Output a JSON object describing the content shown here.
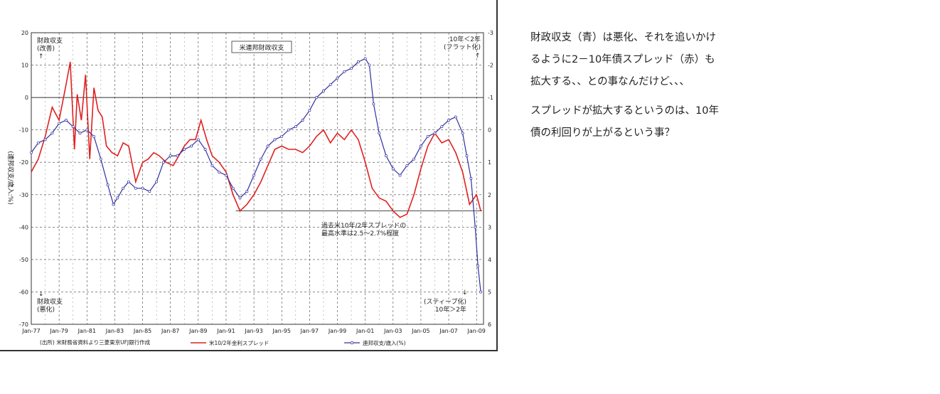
{
  "chart_data": {
    "type": "line",
    "title": "米連邦財政収支",
    "ylabel": "(連邦収支/歳入:%)",
    "ylim": [
      -70,
      20
    ],
    "y2lim": [
      -3,
      6
    ],
    "y2_inverted": true,
    "grid": true,
    "legend_position": "bottom",
    "x_ticks": [
      "Jan-77",
      "Jan-79",
      "Jan-81",
      "Jan-83",
      "Jan-85",
      "Jan-87",
      "Jan-89",
      "Jan-91",
      "Jan-93",
      "Jan-95",
      "Jan-97",
      "Jan-99",
      "Jan-01",
      "Jan-03",
      "Jan-05",
      "Jan-07",
      "Jan-09"
    ],
    "y_ticks": [
      20,
      10,
      0,
      -10,
      -20,
      -30,
      -40,
      -50,
      -60,
      -70
    ],
    "y2_ticks": [
      -3,
      -2,
      -1,
      0,
      1,
      2,
      3,
      4,
      5,
      6
    ],
    "source_note": "(出所) 米財務省資料より三菱東京UFJ銀行作成",
    "series": [
      {
        "name": "米10/2年金利スプレッド",
        "color": "#e02020",
        "axis": "right",
        "x": [
          1977,
          1977.5,
          1978,
          1978.5,
          1979,
          1979.5,
          1979.8,
          1980.1,
          1980.3,
          1980.6,
          1980.9,
          1981.2,
          1981.5,
          1981.8,
          1982.1,
          1982.4,
          1982.8,
          1983.2,
          1983.6,
          1984,
          1984.5,
          1985,
          1985.4,
          1985.8,
          1986.2,
          1986.7,
          1987.2,
          1987.6,
          1988,
          1988.4,
          1988.8,
          1989.2,
          1989.6,
          1990,
          1990.5,
          1991,
          1991.5,
          1992,
          1992.5,
          1993,
          1993.5,
          1994,
          1994.5,
          1995,
          1995.5,
          1996,
          1996.5,
          1997,
          1997.5,
          1998,
          1998.5,
          1999,
          1999.5,
          2000,
          2000.5,
          2001,
          2001.5,
          2002,
          2002.5,
          2003,
          2003.5,
          2004,
          2004.5,
          2005,
          2005.5,
          2006,
          2006.5,
          2007,
          2007.5,
          2008,
          2008.5,
          2009,
          2009.3
        ],
        "y": [
          1.3,
          0.9,
          0.2,
          -0.7,
          -0.3,
          -1.4,
          -2.1,
          0.6,
          -1.1,
          -0.3,
          -1.7,
          0.9,
          -1.3,
          -0.6,
          -0.4,
          0.5,
          0.7,
          0.8,
          0.4,
          0.5,
          1.6,
          1.0,
          0.9,
          0.7,
          0.8,
          1.0,
          1.1,
          0.8,
          0.5,
          0.3,
          0.3,
          -0.3,
          0.3,
          0.8,
          1.0,
          1.3,
          2.0,
          2.5,
          2.3,
          2.0,
          1.6,
          1.1,
          0.6,
          0.5,
          0.6,
          0.6,
          0.7,
          0.5,
          0.2,
          0.0,
          0.4,
          0.1,
          0.3,
          0.0,
          0.3,
          1.0,
          1.8,
          2.1,
          2.2,
          2.5,
          2.7,
          2.6,
          2.0,
          1.2,
          0.5,
          0.1,
          0.4,
          0.3,
          0.7,
          1.3,
          2.3,
          2.0,
          2.5
        ]
      },
      {
        "name": "連邦収支/歳入(%)",
        "color": "#3030a0",
        "axis": "left",
        "x": [
          1977,
          1977.5,
          1978,
          1978.5,
          1979,
          1979.5,
          1980,
          1980.5,
          1981,
          1981.5,
          1982,
          1982.5,
          1982.9,
          1983.2,
          1983.6,
          1984,
          1984.5,
          1985,
          1985.5,
          1986,
          1986.5,
          1987,
          1987.5,
          1988,
          1988.5,
          1989,
          1989.5,
          1990,
          1990.5,
          1991,
          1991.5,
          1992,
          1992.5,
          1993,
          1993.5,
          1994,
          1994.5,
          1995,
          1995.5,
          1996,
          1996.5,
          1997,
          1997.5,
          1998,
          1998.5,
          1999,
          1999.5,
          2000,
          2000.5,
          2001,
          2001.3,
          2001.6,
          2002,
          2002.5,
          2003,
          2003.5,
          2004,
          2004.5,
          2005,
          2005.5,
          2006,
          2006.5,
          2007,
          2007.5,
          2008,
          2008.3,
          2008.6,
          2008.9,
          2009.1,
          2009.3
        ],
        "y": [
          -17,
          -14,
          -13,
          -11,
          -8,
          -7,
          -9,
          -11,
          -10,
          -12,
          -19,
          -27,
          -33,
          -31,
          -28,
          -26,
          -28,
          -28,
          -29,
          -26,
          -20,
          -18,
          -18,
          -16,
          -15,
          -13,
          -16,
          -21,
          -23,
          -24,
          -28,
          -31,
          -29,
          -24,
          -19,
          -15,
          -13,
          -12,
          -10,
          -9,
          -7,
          -4,
          0,
          2,
          4,
          6,
          8,
          9,
          11,
          12,
          10,
          -2,
          -11,
          -18,
          -22,
          -24,
          -21,
          -19,
          -15,
          -12,
          -11,
          -9,
          -7,
          -6,
          -11,
          -18,
          -25,
          -40,
          -52,
          -60
        ]
      }
    ],
    "annotations": {
      "top_left_1": "財政収支",
      "top_left_2": "(改善)",
      "top_left_arrow": "↑",
      "bottom_left_arrow": "↓",
      "bottom_left_1": "財政収支",
      "bottom_left_2": "(悪化)",
      "top_right_1": "10年＜2年",
      "top_right_2": "(フラット化)",
      "top_right_arrow": "↑",
      "bottom_right_arrow": "↓",
      "bottom_right_1": "(スティープ化)",
      "bottom_right_2": "10年＞2年",
      "mid_note_1": "過去米10年/2年スプレッドの",
      "mid_note_2": "最高水準は2.5～2.7%程度"
    }
  },
  "blog": {
    "paragraph1": "財政収支（青）は悪化、それを追いかけ\nるように2－10年債スプレッド（赤）も\n拡大する、、との事なんだけど、、、",
    "paragraph2": "スプレッドが拡大するというのは、10年\n債の利回りが上がるという事？"
  }
}
